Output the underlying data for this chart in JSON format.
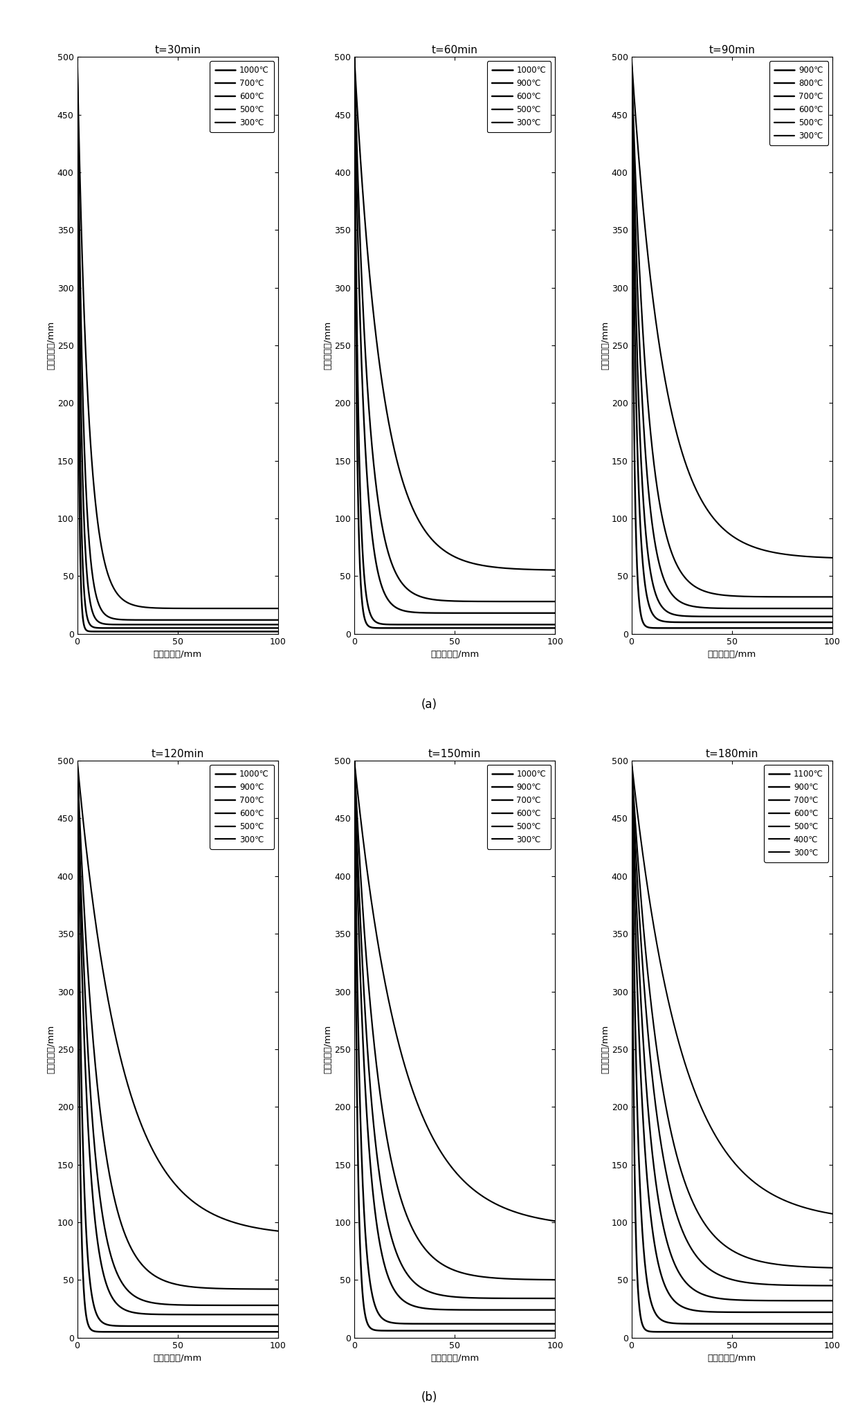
{
  "panels": [
    {
      "title": "t=30min",
      "legend_labels": [
        "1000℃",
        "700℃",
        "600℃",
        "500℃",
        "300℃"
      ],
      "curves": [
        {
          "x_depth": 3,
          "y_floor": 2,
          "corner_r": 3
        },
        {
          "x_depth": 5,
          "y_floor": 5,
          "corner_r": 5
        },
        {
          "x_depth": 8,
          "y_floor": 8,
          "corner_r": 7
        },
        {
          "x_depth": 12,
          "y_floor": 12,
          "corner_r": 10
        },
        {
          "x_depth": 22,
          "y_floor": 22,
          "corner_r": 18
        }
      ]
    },
    {
      "title": "t=60min",
      "legend_labels": [
        "1000℃",
        "900℃",
        "600℃",
        "500℃",
        "300℃"
      ],
      "curves": [
        {
          "x_depth": 5,
          "y_floor": 5,
          "corner_r": 5
        },
        {
          "x_depth": 8,
          "y_floor": 8,
          "corner_r": 7
        },
        {
          "x_depth": 18,
          "y_floor": 18,
          "corner_r": 15
        },
        {
          "x_depth": 28,
          "y_floor": 28,
          "corner_r": 22
        },
        {
          "x_depth": 55,
          "y_floor": 55,
          "corner_r": 40
        }
      ]
    },
    {
      "title": "t=90min",
      "legend_labels": [
        "900℃",
        "800℃",
        "700℃",
        "600℃",
        "500℃",
        "300℃"
      ],
      "curves": [
        {
          "x_depth": 5,
          "y_floor": 5,
          "corner_r": 5
        },
        {
          "x_depth": 10,
          "y_floor": 10,
          "corner_r": 9
        },
        {
          "x_depth": 15,
          "y_floor": 15,
          "corner_r": 13
        },
        {
          "x_depth": 22,
          "y_floor": 22,
          "corner_r": 18
        },
        {
          "x_depth": 32,
          "y_floor": 32,
          "corner_r": 26
        },
        {
          "x_depth": 65,
          "y_floor": 65,
          "corner_r": 50
        }
      ]
    },
    {
      "title": "t=120min",
      "legend_labels": [
        "1000℃",
        "900℃",
        "700℃",
        "600℃",
        "500℃",
        "300℃"
      ],
      "curves": [
        {
          "x_depth": 5,
          "y_floor": 5,
          "corner_r": 5
        },
        {
          "x_depth": 10,
          "y_floor": 10,
          "corner_r": 9
        },
        {
          "x_depth": 20,
          "y_floor": 20,
          "corner_r": 17
        },
        {
          "x_depth": 28,
          "y_floor": 28,
          "corner_r": 23
        },
        {
          "x_depth": 42,
          "y_floor": 42,
          "corner_r": 35
        },
        {
          "x_depth": 88,
          "y_floor": 88,
          "corner_r": 65
        }
      ]
    },
    {
      "title": "t=150min",
      "legend_labels": [
        "1000℃",
        "900℃",
        "700℃",
        "600℃",
        "500℃",
        "300℃"
      ],
      "curves": [
        {
          "x_depth": 6,
          "y_floor": 6,
          "corner_r": 6
        },
        {
          "x_depth": 12,
          "y_floor": 12,
          "corner_r": 11
        },
        {
          "x_depth": 24,
          "y_floor": 24,
          "corner_r": 20
        },
        {
          "x_depth": 34,
          "y_floor": 34,
          "corner_r": 28
        },
        {
          "x_depth": 50,
          "y_floor": 50,
          "corner_r": 40
        },
        {
          "x_depth": 95,
          "y_floor": 95,
          "corner_r": 70
        }
      ]
    },
    {
      "title": "t=180min",
      "legend_labels": [
        "1100℃",
        "900℃",
        "700℃",
        "600℃",
        "500℃",
        "400℃",
        "300℃"
      ],
      "curves": [
        {
          "x_depth": 5,
          "y_floor": 5,
          "corner_r": 5
        },
        {
          "x_depth": 12,
          "y_floor": 12,
          "corner_r": 11
        },
        {
          "x_depth": 22,
          "y_floor": 22,
          "corner_r": 19
        },
        {
          "x_depth": 32,
          "y_floor": 32,
          "corner_r": 27
        },
        {
          "x_depth": 45,
          "y_floor": 45,
          "corner_r": 37
        },
        {
          "x_depth": 60,
          "y_floor": 60,
          "corner_r": 48
        },
        {
          "x_depth": 100,
          "y_floor": 100,
          "corner_r": 75
        }
      ]
    }
  ],
  "xlabel": "至侧边距离/mm",
  "ylabel": "至底边距离/mm",
  "xlim": [
    0,
    100
  ],
  "ylim": [
    0,
    500
  ],
  "xticks": [
    0,
    50,
    100
  ],
  "yticks": [
    0,
    50,
    100,
    150,
    200,
    250,
    300,
    350,
    400,
    450,
    500
  ],
  "row_labels": [
    "(a)",
    "(b)"
  ],
  "line_color": "#000000",
  "background_color": "#ffffff"
}
